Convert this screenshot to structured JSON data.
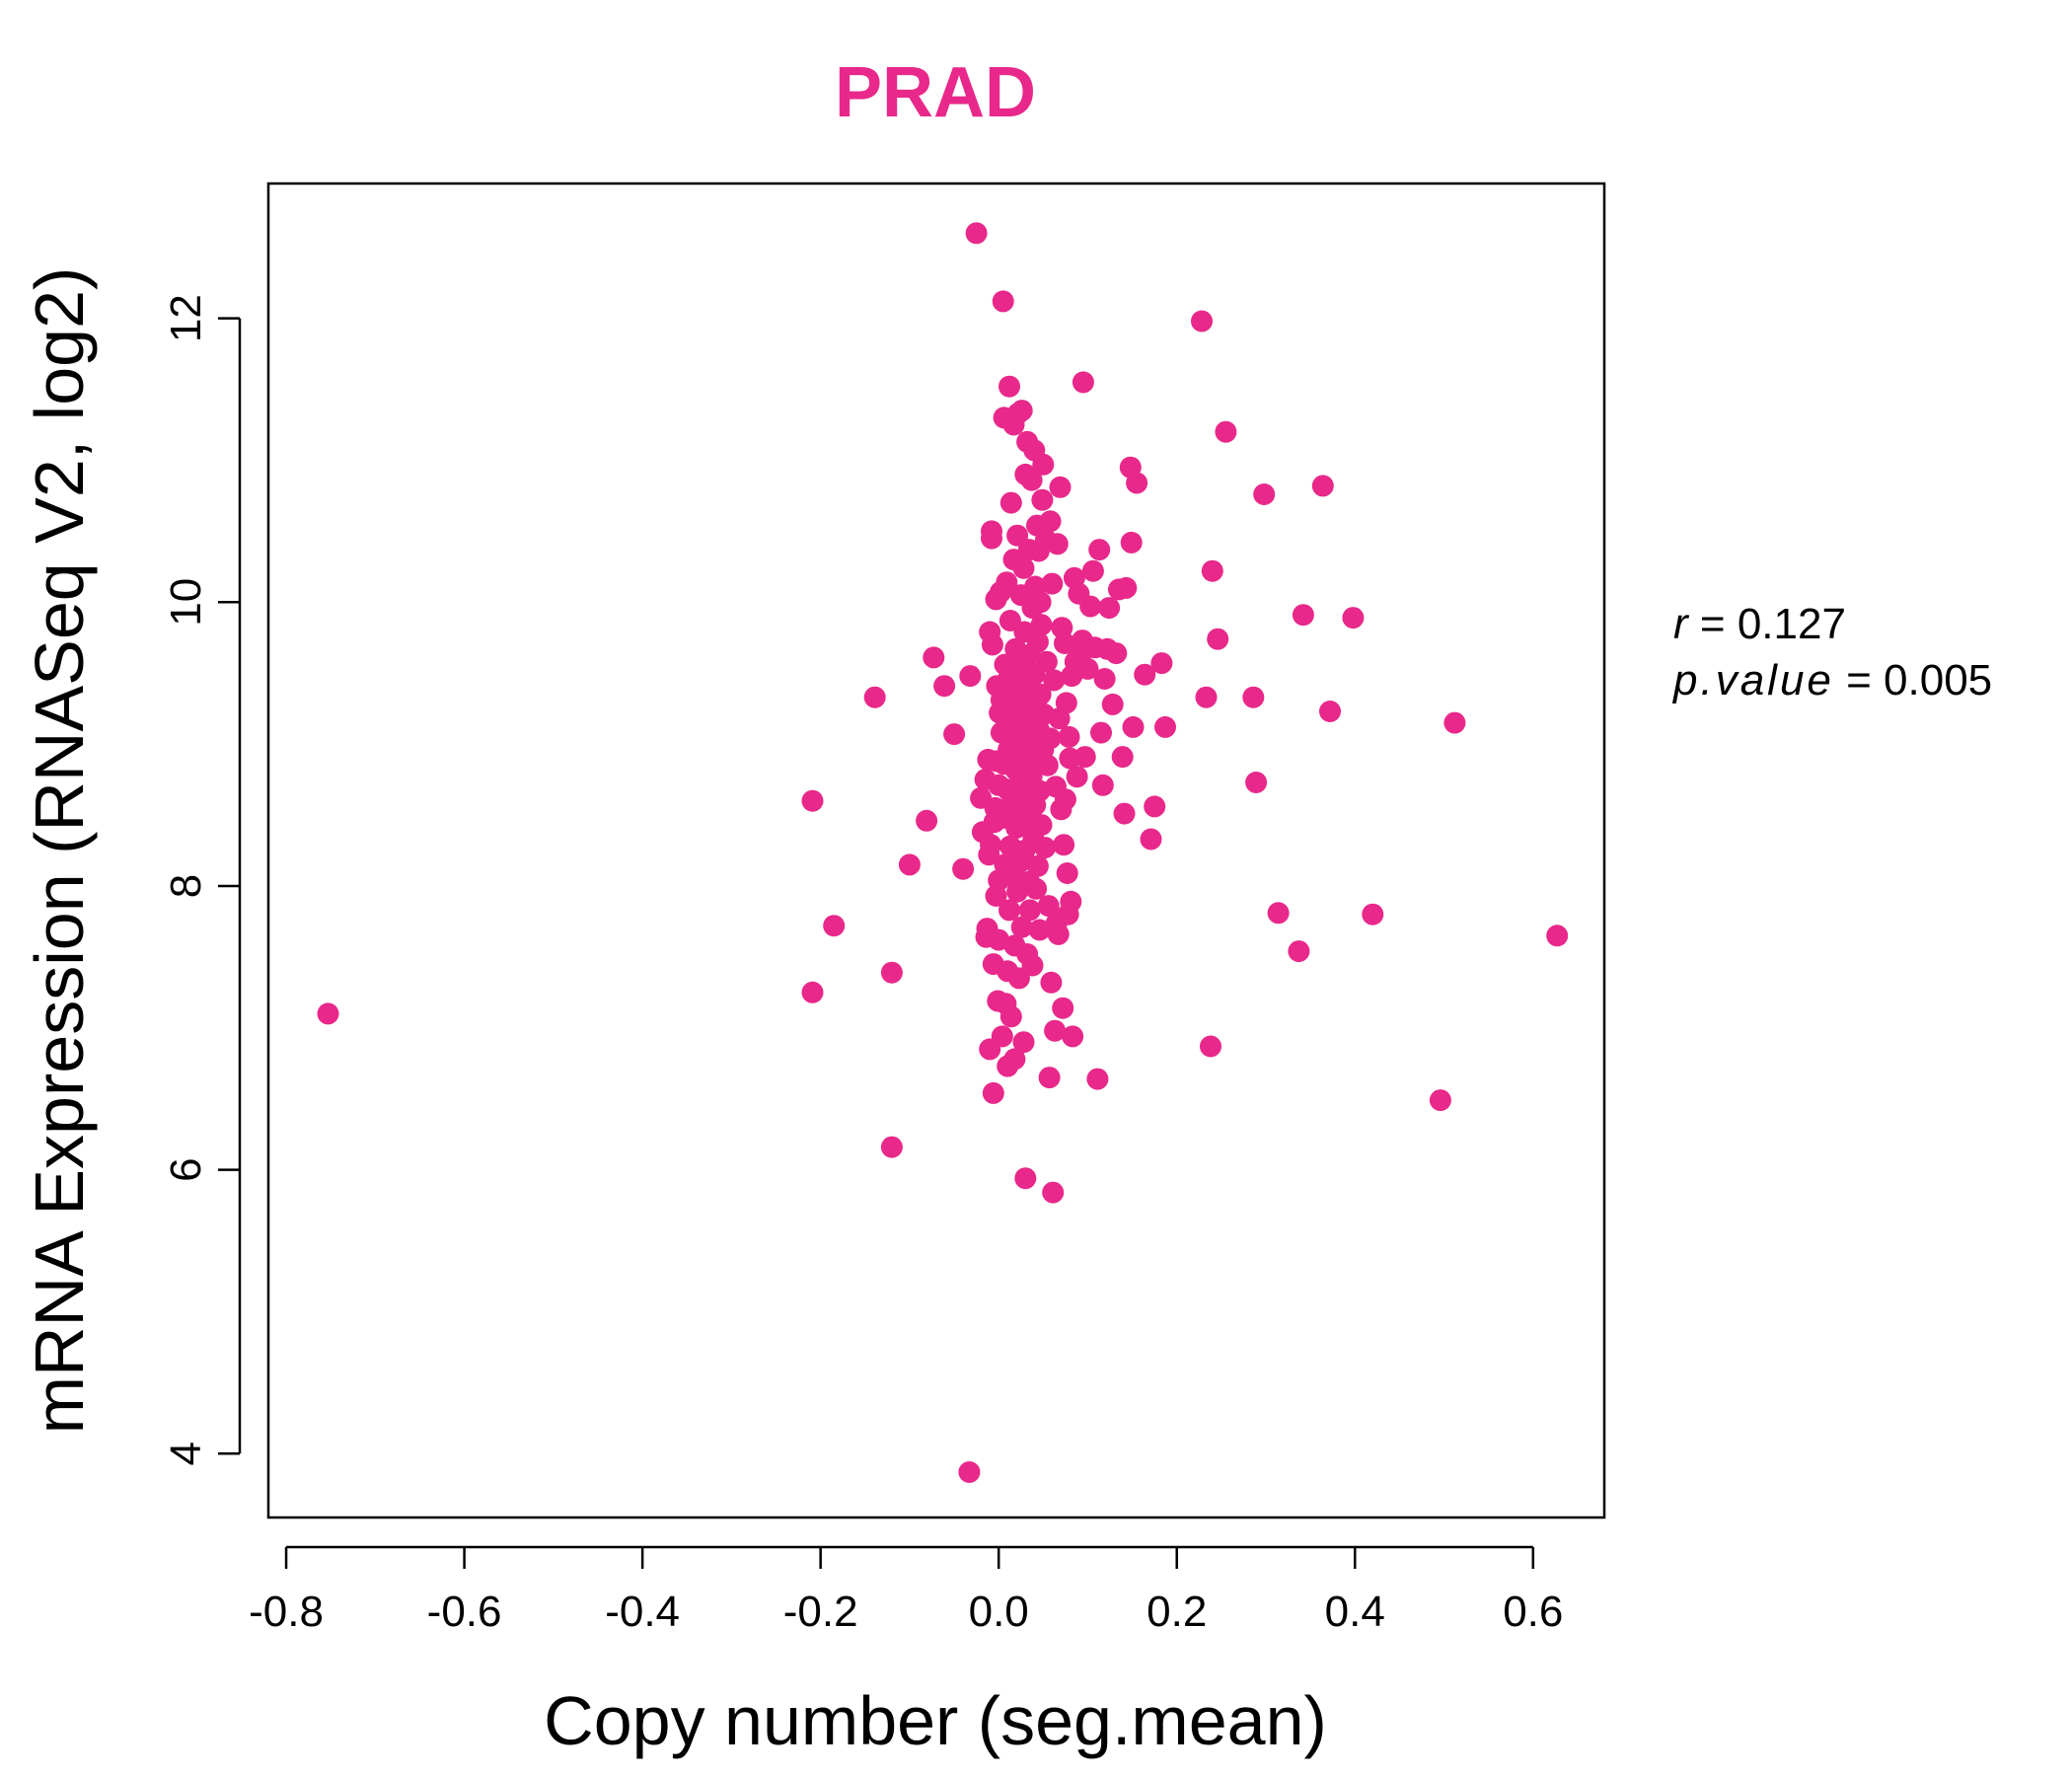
{
  "chart_data": {
    "type": "scatter",
    "title": "PRAD",
    "xlabel": "Copy number (seg.mean)",
    "ylabel": "mRNA Expression (RNASeq V2, log2)",
    "xlim": [
      -0.82,
      0.68
    ],
    "ylim": [
      3.55,
      12.95
    ],
    "x_ticks": [
      -0.8,
      -0.6,
      -0.4,
      -0.2,
      0.0,
      0.2,
      0.4,
      0.6
    ],
    "x_tick_labels": [
      "-0.8",
      "-0.6",
      "-0.4",
      "-0.2",
      "0.0",
      "0.2",
      "0.4",
      "0.6"
    ],
    "y_ticks": [
      4,
      6,
      8,
      10,
      12
    ],
    "y_tick_labels": [
      "4",
      "6",
      "8",
      "10",
      "12"
    ],
    "grid": false,
    "point_color": "#E8288A",
    "title_color": "#E8288A",
    "stats": {
      "r_label": "r",
      "r_value": "0.127",
      "p_label": "p.value",
      "p_value": "0.005"
    },
    "series": [
      {
        "points": [
          [
            -0.753,
            7.1
          ],
          [
            -0.209,
            8.6
          ],
          [
            -0.209,
            7.25
          ],
          [
            -0.185,
            7.72
          ],
          [
            -0.139,
            9.33
          ],
          [
            -0.12,
            7.39
          ],
          [
            -0.12,
            6.16
          ],
          [
            -0.1,
            8.15
          ],
          [
            -0.081,
            8.46
          ],
          [
            -0.073,
            9.61
          ],
          [
            -0.061,
            9.41
          ],
          [
            -0.05,
            9.07
          ],
          [
            -0.04,
            8.12
          ],
          [
            -0.032,
            9.48
          ],
          [
            -0.033,
            3.87
          ],
          [
            -0.025,
            12.6
          ],
          [
            -0.02,
            8.62
          ],
          [
            -0.018,
            8.38
          ],
          [
            -0.015,
            8.75
          ],
          [
            -0.014,
            7.64
          ],
          [
            -0.013,
            7.7
          ],
          [
            -0.012,
            8.89
          ],
          [
            -0.011,
            8.22
          ],
          [
            -0.01,
            9.79
          ],
          [
            -0.01,
            6.85
          ],
          [
            -0.009,
            8.29
          ],
          [
            -0.008,
            10.45
          ],
          [
            -0.008,
            10.5
          ],
          [
            -0.007,
            9.7
          ],
          [
            -0.006,
            7.45
          ],
          [
            -0.006,
            6.54
          ],
          [
            -0.005,
            8.45
          ],
          [
            -0.004,
            8.55
          ],
          [
            -0.003,
            7.93
          ],
          [
            -0.003,
            10.02
          ],
          [
            -0.002,
            8.88
          ],
          [
            -0.002,
            9.41
          ],
          [
            -0.001,
            7.19
          ],
          [
            0.0,
            7.62
          ],
          [
            0.0,
            8.71
          ],
          [
            0.0,
            8.04
          ],
          [
            0.001,
            9.22
          ],
          [
            0.002,
            10.07
          ],
          [
            0.003,
            9.08
          ],
          [
            0.003,
            9.31
          ],
          [
            0.004,
            6.94
          ],
          [
            0.005,
            12.12
          ],
          [
            0.005,
            8.48
          ],
          [
            0.006,
            11.3
          ],
          [
            0.006,
            8.86
          ],
          [
            0.007,
            8.15
          ],
          [
            0.007,
            9.56
          ],
          [
            0.008,
            7.17
          ],
          [
            0.009,
            9.16
          ],
          [
            0.009,
            10.14
          ],
          [
            0.01,
            7.4
          ],
          [
            0.01,
            8.68
          ],
          [
            0.01,
            6.73
          ],
          [
            0.011,
            8.96
          ],
          [
            0.011,
            9.46
          ],
          [
            0.012,
            11.52
          ],
          [
            0.012,
            7.83
          ],
          [
            0.013,
            8.28
          ],
          [
            0.013,
            9.87
          ],
          [
            0.014,
            10.7
          ],
          [
            0.014,
            7.08
          ],
          [
            0.015,
            8.59
          ],
          [
            0.015,
            9.38
          ],
          [
            0.016,
            9.02
          ],
          [
            0.016,
            8.07
          ],
          [
            0.017,
            11.25
          ],
          [
            0.017,
            10.3
          ],
          [
            0.018,
            7.58
          ],
          [
            0.018,
            6.78
          ],
          [
            0.019,
            8.82
          ],
          [
            0.019,
            9.67
          ],
          [
            0.02,
            8.41
          ],
          [
            0.02,
            9.25
          ],
          [
            0.021,
            7.96
          ],
          [
            0.021,
            10.47
          ],
          [
            0.022,
            11.33
          ],
          [
            0.022,
            9.12
          ],
          [
            0.023,
            8.71
          ],
          [
            0.023,
            7.35
          ],
          [
            0.024,
            9.53
          ],
          [
            0.024,
            8.17
          ],
          [
            0.025,
            10.05
          ],
          [
            0.025,
            8.95
          ],
          [
            0.026,
            11.35
          ],
          [
            0.026,
            7.71
          ],
          [
            0.027,
            9.3
          ],
          [
            0.027,
            8.51
          ],
          [
            0.028,
            10.24
          ],
          [
            0.028,
            6.9
          ],
          [
            0.029,
            9.79
          ],
          [
            0.029,
            8.25
          ],
          [
            0.03,
            10.9
          ],
          [
            0.03,
            5.94
          ],
          [
            0.031,
            9.06
          ],
          [
            0.031,
            8.63
          ],
          [
            0.032,
            11.13
          ],
          [
            0.032,
            7.52
          ],
          [
            0.033,
            9.41
          ],
          [
            0.033,
            8.88
          ],
          [
            0.034,
            10.37
          ],
          [
            0.034,
            8.03
          ],
          [
            0.035,
            9.63
          ],
          [
            0.035,
            7.83
          ],
          [
            0.036,
            8.44
          ],
          [
            0.036,
            9.18
          ],
          [
            0.037,
            10.86
          ],
          [
            0.037,
            8.77
          ],
          [
            0.038,
            9.96
          ],
          [
            0.038,
            7.44
          ],
          [
            0.039,
            9.01
          ],
          [
            0.039,
            8.33
          ],
          [
            0.04,
            11.07
          ],
          [
            0.04,
            9.49
          ],
          [
            0.041,
            10.11
          ],
          [
            0.041,
            8.57
          ],
          [
            0.042,
            9.27
          ],
          [
            0.042,
            7.98
          ],
          [
            0.043,
            10.54
          ],
          [
            0.043,
            8.92
          ],
          [
            0.044,
            9.72
          ],
          [
            0.044,
            8.14
          ],
          [
            0.045,
            10.36
          ],
          [
            0.045,
            9.1
          ],
          [
            0.046,
            8.67
          ],
          [
            0.046,
            7.69
          ],
          [
            0.047,
            10.0
          ],
          [
            0.047,
            9.35
          ],
          [
            0.048,
            8.43
          ],
          [
            0.048,
            9.84
          ],
          [
            0.049,
            10.72
          ],
          [
            0.05,
            10.97
          ],
          [
            0.05,
            8.96
          ],
          [
            0.051,
            9.21
          ],
          [
            0.052,
            8.27
          ],
          [
            0.053,
            10.44
          ],
          [
            0.054,
            9.58
          ],
          [
            0.055,
            8.85
          ],
          [
            0.056,
            7.86
          ],
          [
            0.057,
            6.65
          ],
          [
            0.058,
            10.57
          ],
          [
            0.058,
            9.04
          ],
          [
            0.059,
            7.32
          ],
          [
            0.06,
            10.13
          ],
          [
            0.061,
            5.84
          ],
          [
            0.062,
            9.45
          ],
          [
            0.063,
            6.98
          ],
          [
            0.064,
            8.7
          ],
          [
            0.065,
            7.74
          ],
          [
            0.066,
            10.41
          ],
          [
            0.067,
            7.66
          ],
          [
            0.068,
            9.18
          ],
          [
            0.069,
            10.81
          ],
          [
            0.07,
            8.54
          ],
          [
            0.071,
            9.82
          ],
          [
            0.072,
            7.14
          ],
          [
            0.073,
            8.29
          ],
          [
            0.074,
            9.71
          ],
          [
            0.075,
            8.61
          ],
          [
            0.076,
            9.29
          ],
          [
            0.077,
            8.09
          ],
          [
            0.078,
            7.8
          ],
          [
            0.079,
            9.05
          ],
          [
            0.08,
            8.9
          ],
          [
            0.081,
            7.89
          ],
          [
            0.082,
            9.48
          ],
          [
            0.083,
            6.94
          ],
          [
            0.085,
            10.17
          ],
          [
            0.086,
            9.58
          ],
          [
            0.088,
            8.77
          ],
          [
            0.09,
            10.06
          ],
          [
            0.092,
            9.63
          ],
          [
            0.094,
            9.73
          ],
          [
            0.095,
            11.55
          ],
          [
            0.097,
            8.91
          ],
          [
            0.1,
            9.53
          ],
          [
            0.103,
            9.97
          ],
          [
            0.106,
            10.22
          ],
          [
            0.108,
            9.68
          ],
          [
            0.111,
            6.64
          ],
          [
            0.113,
            10.37
          ],
          [
            0.115,
            9.08
          ],
          [
            0.117,
            8.71
          ],
          [
            0.119,
            9.46
          ],
          [
            0.122,
            9.67
          ],
          [
            0.124,
            9.96
          ],
          [
            0.128,
            9.28
          ],
          [
            0.132,
            9.64
          ],
          [
            0.135,
            10.09
          ],
          [
            0.139,
            8.91
          ],
          [
            0.141,
            8.51
          ],
          [
            0.143,
            10.1
          ],
          [
            0.148,
            10.95
          ],
          [
            0.149,
            10.42
          ],
          [
            0.151,
            9.12
          ],
          [
            0.155,
            10.84
          ],
          [
            0.164,
            9.49
          ],
          [
            0.171,
            8.33
          ],
          [
            0.175,
            8.56
          ],
          [
            0.183,
            9.57
          ],
          [
            0.187,
            9.12
          ],
          [
            0.228,
            11.98
          ],
          [
            0.233,
            9.33
          ],
          [
            0.238,
            6.87
          ],
          [
            0.24,
            10.22
          ],
          [
            0.246,
            9.74
          ],
          [
            0.255,
            11.2
          ],
          [
            0.286,
            9.33
          ],
          [
            0.289,
            8.73
          ],
          [
            0.298,
            10.76
          ],
          [
            0.314,
            7.81
          ],
          [
            0.337,
            7.54
          ],
          [
            0.342,
            9.91
          ],
          [
            0.364,
            10.82
          ],
          [
            0.372,
            9.23
          ],
          [
            0.398,
            9.89
          ],
          [
            0.42,
            7.8
          ],
          [
            0.496,
            6.49
          ],
          [
            0.512,
            9.15
          ],
          [
            0.627,
            7.65
          ]
        ]
      }
    ]
  }
}
